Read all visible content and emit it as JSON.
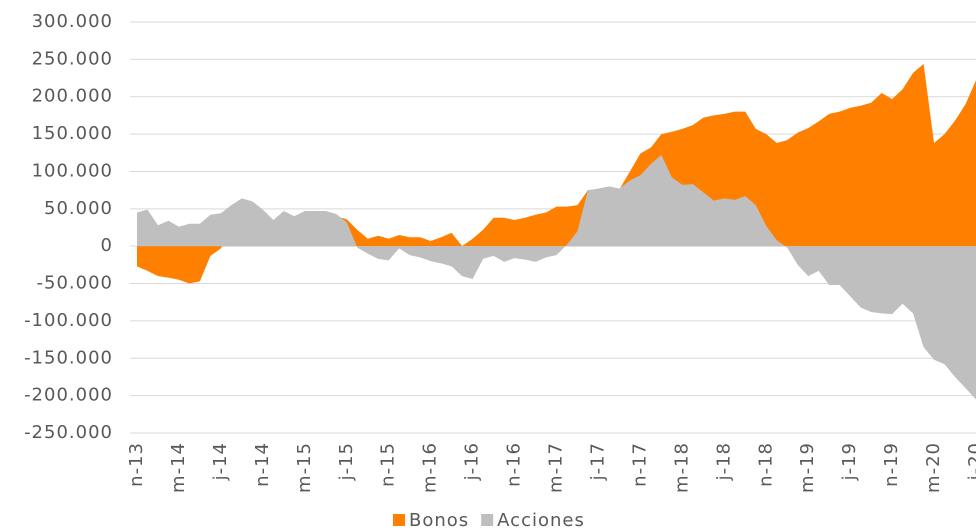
{
  "chart_data": {
    "type": "area",
    "categories": [
      "n-13",
      null,
      null,
      null,
      "m-14",
      null,
      null,
      null,
      "j-14",
      null,
      null,
      null,
      "n-14",
      null,
      null,
      null,
      "m-15",
      null,
      null,
      null,
      "j-15",
      null,
      null,
      null,
      "n-15",
      null,
      null,
      null,
      "m-16",
      null,
      null,
      null,
      "j-16",
      null,
      null,
      null,
      "n-16",
      null,
      null,
      null,
      "m-17",
      null,
      null,
      null,
      "j-17",
      null,
      null,
      null,
      "n-17",
      null,
      null,
      null,
      "m-18",
      null,
      null,
      null,
      "j-18",
      null,
      null,
      null,
      "n-18",
      null,
      null,
      null,
      "m-19",
      null,
      null,
      null,
      "j-19",
      null,
      null,
      null,
      "n-19",
      null,
      null,
      null,
      "m-20",
      null,
      null,
      null,
      "j-20"
    ],
    "series": [
      {
        "name": "Bonos",
        "color": "#ff7f00",
        "values": [
          -27000,
          -33000,
          -40000,
          -42000,
          -45000,
          -50000,
          -47000,
          -13000,
          -3000,
          20000,
          25000,
          28000,
          30000,
          28000,
          32000,
          35000,
          38000,
          40000,
          42000,
          40000,
          36000,
          22000,
          10000,
          14000,
          10000,
          15000,
          12000,
          12000,
          7000,
          12000,
          18000,
          0,
          10000,
          22000,
          38000,
          38000,
          35000,
          38000,
          42000,
          45000,
          53000,
          53000,
          55000,
          75000,
          76000,
          78000,
          76000,
          100000,
          124000,
          132000,
          150000,
          153000,
          157000,
          162000,
          172000,
          175000,
          177000,
          180000,
          180000,
          157000,
          150000,
          138000,
          142000,
          152000,
          158000,
          167000,
          177000,
          180000,
          185000,
          188000,
          192000,
          205000,
          197000,
          210000,
          232000,
          244000,
          138000,
          150000,
          168000,
          190000,
          222000
        ]
      },
      {
        "name": "Acciones",
        "color": "#bfbfbf",
        "values": [
          45000,
          49000,
          28000,
          34000,
          26000,
          30000,
          30000,
          42000,
          44000,
          55000,
          64000,
          60000,
          49000,
          35000,
          47000,
          40000,
          47000,
          47000,
          47000,
          43000,
          32000,
          -2000,
          -10000,
          -17000,
          -19000,
          -3000,
          -12000,
          -15000,
          -20000,
          -23000,
          -27000,
          -40000,
          -44000,
          -17000,
          -13000,
          -21000,
          -16000,
          -18000,
          -21000,
          -15000,
          -12000,
          2000,
          20000,
          75000,
          77000,
          80000,
          77000,
          88000,
          95000,
          110000,
          122000,
          92000,
          82000,
          83000,
          72000,
          61000,
          64000,
          62000,
          67000,
          55000,
          27000,
          8000,
          -2000,
          -25000,
          -40000,
          -33000,
          -52000,
          -52000,
          -67000,
          -82000,
          -88000,
          -90000,
          -91000,
          -77000,
          -90000,
          -135000,
          -152000,
          -158000,
          -175000,
          -190000,
          -205000
        ]
      }
    ],
    "ylim": [
      -250000,
      300000
    ],
    "yticks": [
      {
        "value": 300000,
        "label": "300.000"
      },
      {
        "value": 250000,
        "label": "250.000"
      },
      {
        "value": 200000,
        "label": "200.000"
      },
      {
        "value": 150000,
        "label": "150.000"
      },
      {
        "value": 100000,
        "label": "100.000"
      },
      {
        "value": 50000,
        "label": "50.000"
      },
      0,
      {
        "value": -50000,
        "label": "-50.000"
      },
      {
        "value": -100000,
        "label": "-100.000"
      },
      {
        "value": -150000,
        "label": "-150.000"
      },
      {
        "value": -200000,
        "label": "-200.000"
      },
      {
        "value": -250000,
        "label": "-250.000"
      }
    ],
    "grid": true,
    "legend": "bottom"
  }
}
